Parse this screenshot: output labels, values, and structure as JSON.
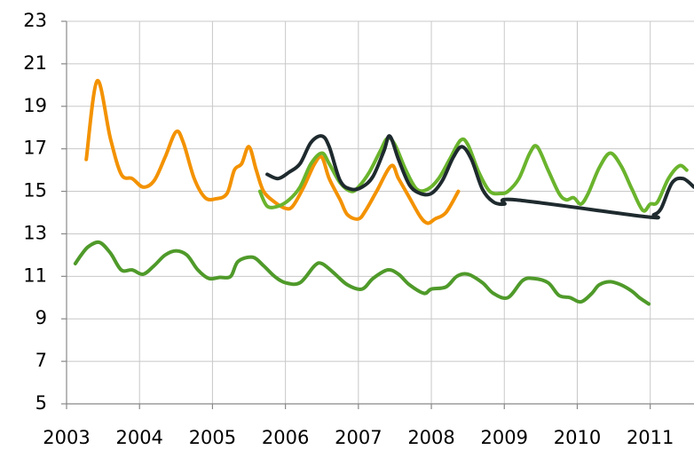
{
  "chart_data": {
    "type": "line",
    "xlim": [
      2003,
      2011.6
    ],
    "xticks": [
      2003,
      2004,
      2005,
      2006,
      2007,
      2008,
      2009,
      2010,
      2011
    ],
    "ylim": [
      5,
      23
    ],
    "yticks": [
      5,
      7,
      9,
      11,
      13,
      15,
      17,
      19,
      21,
      23
    ],
    "grid": true,
    "series": [
      {
        "color": "#f39200",
        "x": [
          2003.27,
          2003.42,
          2003.6,
          2003.75,
          2003.9,
          2004.05,
          2004.2,
          2004.35,
          2004.5,
          2004.6,
          2004.75,
          2004.9,
          2005.05,
          2005.2,
          2005.3,
          2005.4,
          2005.5,
          2005.6,
          2005.7,
          2005.85,
          2006.0,
          2006.1,
          2006.25,
          2006.4,
          2006.5,
          2006.6,
          2006.75,
          2006.85,
          2007.0,
          2007.1,
          2007.25,
          2007.45,
          2007.55,
          2007.7,
          2007.85,
          2007.95,
          2008.05,
          2008.2,
          2008.37
        ],
        "values": [
          16.5,
          20.2,
          17.5,
          15.8,
          15.6,
          15.2,
          15.5,
          16.6,
          17.8,
          17.3,
          15.6,
          14.7,
          14.65,
          14.9,
          16.0,
          16.3,
          17.1,
          16.0,
          15.0,
          14.5,
          14.2,
          14.3,
          15.2,
          16.3,
          16.6,
          15.6,
          14.6,
          13.9,
          13.7,
          14.1,
          15.0,
          16.2,
          15.6,
          14.7,
          13.8,
          13.5,
          13.7,
          14.0,
          15.0
        ]
      },
      {
        "color": "#6ab42d",
        "x": [
          2005.65,
          2005.75,
          2005.9,
          2006.05,
          2006.2,
          2006.35,
          2006.5,
          2006.6,
          2006.75,
          2006.9,
          2007.0,
          2007.15,
          2007.3,
          2007.4,
          2007.5,
          2007.65,
          2007.8,
          2007.95,
          2008.1,
          2008.25,
          2008.4,
          2008.5,
          2008.65,
          2008.8,
          2008.95,
          2009.05,
          2009.2,
          2009.35,
          2009.45,
          2009.6,
          2009.75,
          2009.85,
          2009.95,
          2010.05,
          2010.15,
          2010.3,
          2010.45,
          2010.6,
          2010.75,
          2010.9,
          2011.0,
          2011.1,
          2011.25,
          2011.4,
          2011.5
        ],
        "values": [
          15.0,
          14.3,
          14.3,
          14.6,
          15.2,
          16.3,
          16.8,
          16.3,
          15.4,
          15.0,
          15.2,
          15.9,
          16.9,
          17.5,
          17.2,
          16.0,
          15.1,
          15.1,
          15.6,
          16.5,
          17.4,
          17.2,
          15.9,
          15.0,
          14.9,
          15.0,
          15.6,
          16.8,
          17.1,
          16.0,
          14.9,
          14.6,
          14.7,
          14.4,
          14.9,
          16.1,
          16.8,
          16.2,
          15.1,
          14.1,
          14.4,
          14.5,
          15.6,
          16.2,
          16.0
        ]
      },
      {
        "color": "#1e2a2e",
        "x": [
          2005.75,
          2005.9,
          2006.05,
          2006.2,
          2006.35,
          2006.5,
          2006.6,
          2006.75,
          2006.9,
          2007.05,
          2007.2,
          2007.35,
          2007.43,
          2007.55,
          2007.7,
          2007.85,
          2008.0,
          2008.15,
          2008.3,
          2008.42,
          2008.55,
          2008.7,
          2008.85,
          2009.0,
          2009.15,
          2010.95,
          2011.05,
          2011.15,
          2011.3,
          2011.45,
          2011.6
        ],
        "values": [
          15.8,
          15.6,
          15.9,
          16.3,
          17.3,
          17.6,
          17.1,
          15.5,
          15.1,
          15.2,
          15.7,
          16.9,
          17.6,
          16.5,
          15.3,
          14.9,
          14.9,
          15.5,
          16.6,
          17.1,
          16.5,
          15.1,
          14.5,
          14.4,
          14.6,
          13.8,
          13.9,
          14.2,
          15.4,
          15.6,
          15.2
        ]
      },
      {
        "color": "#4f9a2a",
        "x": [
          2003.12,
          2003.2,
          2003.3,
          2003.45,
          2003.6,
          2003.75,
          2003.9,
          2004.05,
          2004.2,
          2004.35,
          2004.5,
          2004.65,
          2004.8,
          2004.95,
          2005.1,
          2005.25,
          2005.35,
          2005.55,
          2005.7,
          2005.85,
          2006.0,
          2006.2,
          2006.4,
          2006.5,
          2006.65,
          2006.85,
          2007.05,
          2007.2,
          2007.4,
          2007.55,
          2007.7,
          2007.9,
          2008.0,
          2008.2,
          2008.35,
          2008.5,
          2008.7,
          2008.85,
          2009.05,
          2009.25,
          2009.4,
          2009.6,
          2009.75,
          2009.9,
          2010.05,
          2010.2,
          2010.3,
          2010.45,
          2010.6,
          2010.75,
          2010.85,
          2010.98
        ],
        "values": [
          11.6,
          12.0,
          12.4,
          12.6,
          12.1,
          11.3,
          11.3,
          11.1,
          11.5,
          12.0,
          12.2,
          12.0,
          11.3,
          10.9,
          10.95,
          11.0,
          11.7,
          11.9,
          11.5,
          11.0,
          10.7,
          10.7,
          11.5,
          11.6,
          11.2,
          10.6,
          10.4,
          10.9,
          11.3,
          11.1,
          10.6,
          10.2,
          10.4,
          10.5,
          11.0,
          11.1,
          10.7,
          10.2,
          10.0,
          10.8,
          10.9,
          10.7,
          10.1,
          10.0,
          9.8,
          10.2,
          10.6,
          10.75,
          10.6,
          10.3,
          10.0,
          9.7
        ]
      }
    ]
  }
}
